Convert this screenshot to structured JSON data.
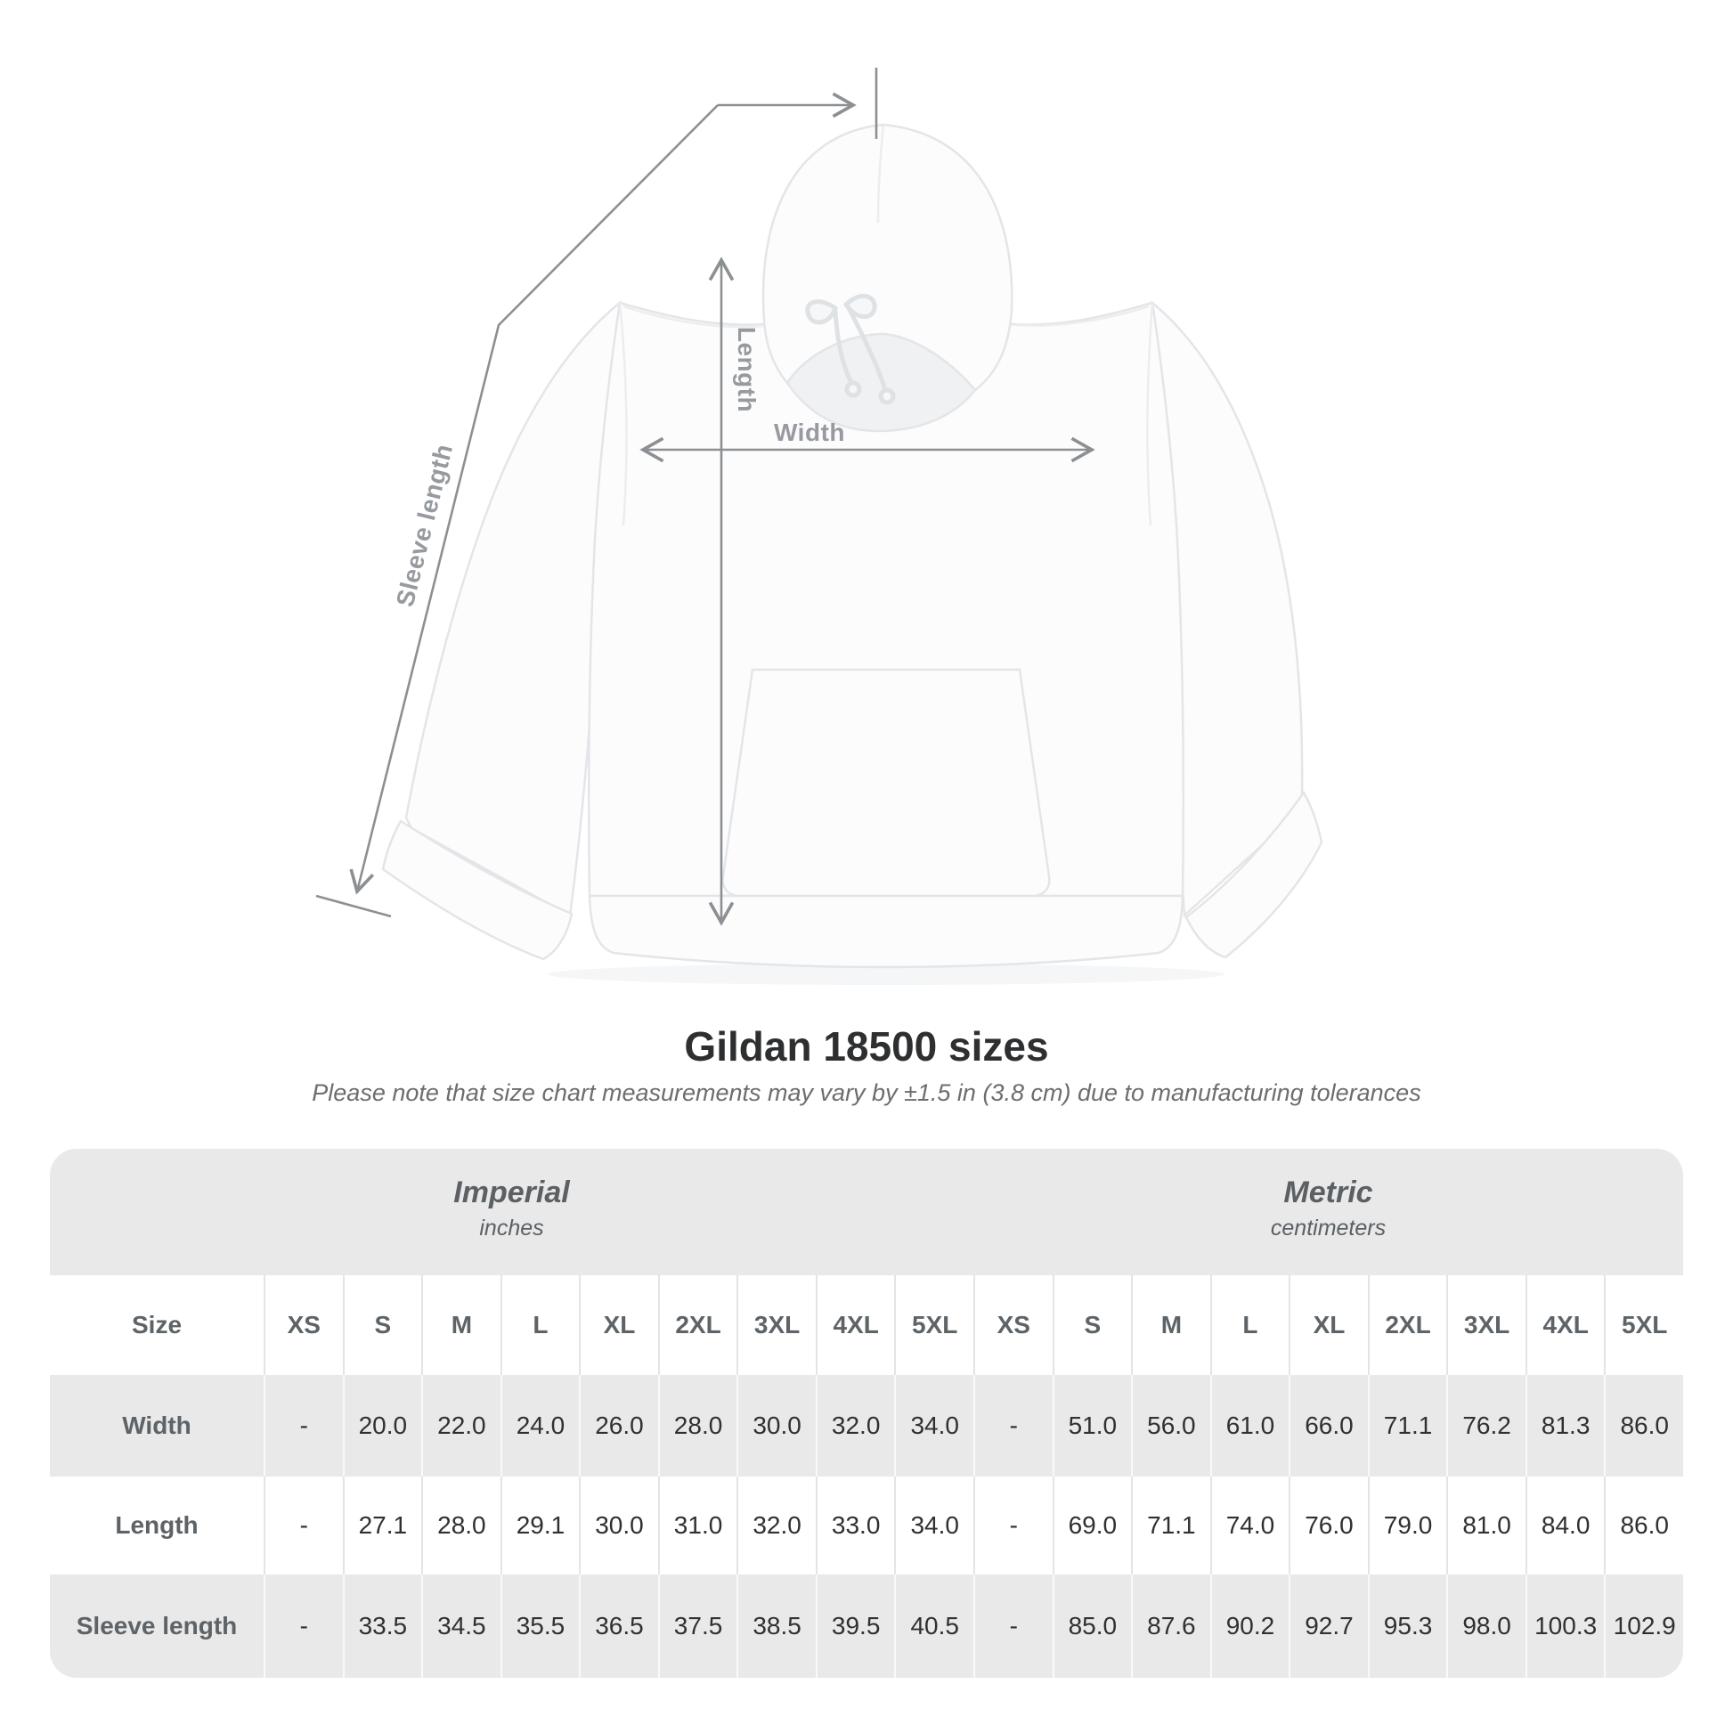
{
  "diagram": {
    "sleeve_label": "Sleeve length",
    "length_label": "Length",
    "width_label": "Width"
  },
  "title": "Gildan 18500 sizes",
  "subtitle": "Please note that size chart measurements may vary by ±1.5 in (3.8 cm) due to manufacturing tolerances",
  "table": {
    "unit_groups": [
      {
        "label": "Imperial",
        "sublabel": "inches"
      },
      {
        "label": "Metric",
        "sublabel": "centimeters"
      }
    ],
    "size_column_header": "Size",
    "sizes": [
      "XS",
      "S",
      "M",
      "L",
      "XL",
      "2XL",
      "3XL",
      "4XL",
      "5XL"
    ],
    "rows": [
      {
        "label": "Width",
        "imperial": [
          "-",
          "20.0",
          "22.0",
          "24.0",
          "26.0",
          "28.0",
          "30.0",
          "32.0",
          "34.0"
        ],
        "metric": [
          "-",
          "51.0",
          "56.0",
          "61.0",
          "66.0",
          "71.1",
          "76.2",
          "81.3",
          "86.0"
        ]
      },
      {
        "label": "Length",
        "imperial": [
          "-",
          "27.1",
          "28.0",
          "29.1",
          "30.0",
          "31.0",
          "32.0",
          "33.0",
          "34.0"
        ],
        "metric": [
          "-",
          "69.0",
          "71.1",
          "74.0",
          "76.0",
          "79.0",
          "81.0",
          "84.0",
          "86.0"
        ]
      },
      {
        "label": "Sleeve length",
        "imperial": [
          "-",
          "33.5",
          "34.5",
          "35.5",
          "36.5",
          "37.5",
          "38.5",
          "39.5",
          "40.5"
        ],
        "metric": [
          "-",
          "85.0",
          "87.6",
          "90.2",
          "92.7",
          "95.3",
          "98.0",
          "100.3",
          "102.9"
        ]
      }
    ]
  },
  "colors": {
    "band_bg": "#e9e9ea",
    "stripe_bg": "#e9e9ea",
    "measure_line": "#8d9093",
    "measure_label": "#979b9f",
    "header_text": "#5d6367",
    "value_text": "#2e3032",
    "title_text": "#2d2f31",
    "subtitle_text": "#6b6d6f"
  },
  "chart_data": {
    "type": "table",
    "title": "Gildan 18500 sizes",
    "note": "Please note that size chart measurements may vary by ±1.5 in (3.8 cm) due to manufacturing tolerances",
    "unit_groups": [
      "Imperial (inches)",
      "Metric (centimeters)"
    ],
    "sizes": [
      "XS",
      "S",
      "M",
      "L",
      "XL",
      "2XL",
      "3XL",
      "4XL",
      "5XL"
    ],
    "measurements": [
      {
        "name": "Width",
        "imperial_in": [
          null,
          20.0,
          22.0,
          24.0,
          26.0,
          28.0,
          30.0,
          32.0,
          34.0
        ],
        "metric_cm": [
          null,
          51.0,
          56.0,
          61.0,
          66.0,
          71.1,
          76.2,
          81.3,
          86.0
        ]
      },
      {
        "name": "Length",
        "imperial_in": [
          null,
          27.1,
          28.0,
          29.1,
          30.0,
          31.0,
          32.0,
          33.0,
          34.0
        ],
        "metric_cm": [
          null,
          69.0,
          71.1,
          74.0,
          76.0,
          79.0,
          81.0,
          84.0,
          86.0
        ]
      },
      {
        "name": "Sleeve length",
        "imperial_in": [
          null,
          33.5,
          34.5,
          35.5,
          36.5,
          37.5,
          38.5,
          39.5,
          40.5
        ],
        "metric_cm": [
          null,
          85.0,
          87.6,
          90.2,
          92.7,
          95.3,
          98.0,
          100.3,
          102.9
        ]
      }
    ]
  }
}
